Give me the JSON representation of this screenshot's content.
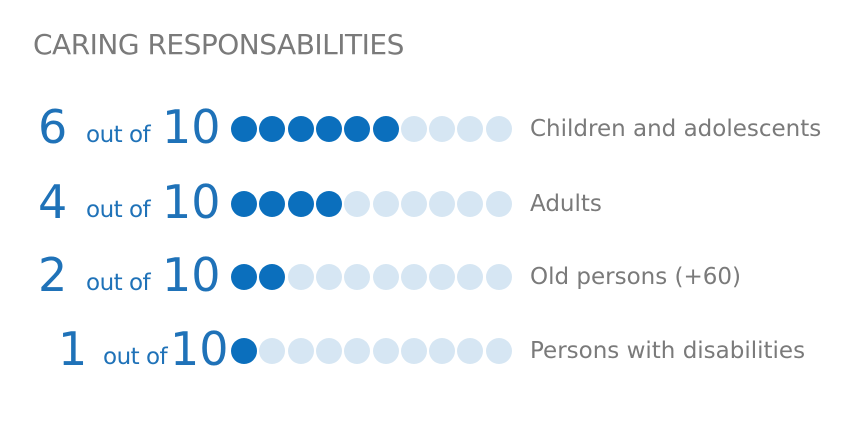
{
  "title": "CARING RESPONSABILITIES",
  "colors": {
    "filled": "#0b6fbd",
    "empty": "#d6e6f3",
    "accent_text": "#1f72b8",
    "label_text": "#7a7a7a"
  },
  "chart_data": {
    "type": "pictogram",
    "total": 10,
    "unit_text": "out of",
    "items": [
      {
        "value": 6,
        "total_label": "10",
        "label": "Children and adolescents"
      },
      {
        "value": 4,
        "total_label": "10",
        "label": "Adults"
      },
      {
        "value": 2,
        "total_label": "10",
        "label": "Old persons (+60)"
      },
      {
        "value": 1,
        "total_label": "10",
        "label": "Persons with disabilities"
      }
    ]
  }
}
